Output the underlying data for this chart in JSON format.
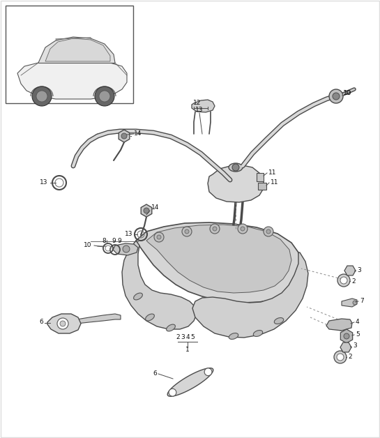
{
  "bg_color": "#ffffff",
  "line_color": "#4a4a4a",
  "part_fill": "#e8e8e8",
  "part_fill_dark": "#d0d0d0",
  "part_stroke": "#4a4a4a",
  "label_color": "#111111",
  "dashed_color": "#888888"
}
